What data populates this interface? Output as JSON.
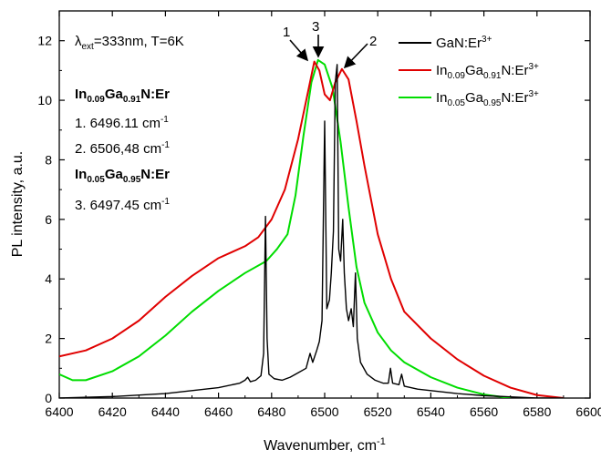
{
  "chart_data": {
    "type": "line",
    "xlabel": "Wavenumber, cm",
    "xlabel_sup": "-1",
    "ylabel": "PL intensity, a.u.",
    "xlim": [
      6400,
      6600
    ],
    "ylim": [
      0,
      13
    ],
    "x_ticks": [
      "6400",
      "6420",
      "6440",
      "6460",
      "6480",
      "6500",
      "6520",
      "6540",
      "6560",
      "6580",
      "6600"
    ],
    "y_ticks": [
      "0",
      "2",
      "4",
      "6",
      "8",
      "10",
      "12"
    ],
    "grid": false,
    "legend_position": "top-right",
    "annotations": {
      "condition_lambda": "λ",
      "condition_sub": "ext",
      "condition_rest": "=333nm, T=6K",
      "sample1": {
        "a": "In",
        "a_sub": "0.09",
        "b": "Ga",
        "b_sub": "0.91",
        "c": "N:Er"
      },
      "peak1": "1. 6496.11 cm",
      "peak1_sup": "-1",
      "peak2": "2. 6506,48 cm",
      "peak2_sup": "-1",
      "sample2": {
        "a": "In",
        "a_sub": "0.05",
        "b": "Ga",
        "b_sub": "0.95",
        "c": "N:Er"
      },
      "peak3": "3. 6497.45 cm",
      "peak3_sup": "-1",
      "arrow_labels": [
        "1",
        "3",
        "2"
      ]
    },
    "series": [
      {
        "name": "GaN:Er3+",
        "legend": {
          "base": "GaN:Er",
          "sup": "3+"
        },
        "color": "#000000",
        "points": [
          [
            6400,
            0.0
          ],
          [
            6420,
            0.05
          ],
          [
            6440,
            0.15
          ],
          [
            6460,
            0.35
          ],
          [
            6468,
            0.5
          ],
          [
            6470,
            0.6
          ],
          [
            6471,
            0.7
          ],
          [
            6472,
            0.55
          ],
          [
            6474,
            0.6
          ],
          [
            6476,
            0.75
          ],
          [
            6477,
            1.5
          ],
          [
            6477.7,
            6.1
          ],
          [
            6478.3,
            2.0
          ],
          [
            6479,
            0.8
          ],
          [
            6481,
            0.65
          ],
          [
            6484,
            0.6
          ],
          [
            6487,
            0.7
          ],
          [
            6490,
            0.85
          ],
          [
            6493,
            1.0
          ],
          [
            6494.5,
            1.5
          ],
          [
            6495.5,
            1.2
          ],
          [
            6497,
            1.6
          ],
          [
            6498,
            1.9
          ],
          [
            6499,
            2.6
          ],
          [
            6500,
            9.3
          ],
          [
            6500.8,
            3.0
          ],
          [
            6501.8,
            3.3
          ],
          [
            6502.5,
            4.2
          ],
          [
            6503.3,
            5.6
          ],
          [
            6504,
            10.6
          ],
          [
            6504.7,
            11.2
          ],
          [
            6505.3,
            5.0
          ],
          [
            6506,
            4.6
          ],
          [
            6506.8,
            6.0
          ],
          [
            6507.4,
            4.2
          ],
          [
            6508.2,
            3.0
          ],
          [
            6509,
            2.6
          ],
          [
            6510,
            3.0
          ],
          [
            6510.8,
            2.4
          ],
          [
            6511.6,
            4.2
          ],
          [
            6512.3,
            2.0
          ],
          [
            6513.5,
            1.2
          ],
          [
            6516,
            0.8
          ],
          [
            6519,
            0.6
          ],
          [
            6522,
            0.5
          ],
          [
            6524,
            0.5
          ],
          [
            6524.8,
            1.0
          ],
          [
            6525.6,
            0.5
          ],
          [
            6528,
            0.45
          ],
          [
            6529,
            0.8
          ],
          [
            6530,
            0.4
          ],
          [
            6535,
            0.3
          ],
          [
            6540,
            0.25
          ],
          [
            6550,
            0.15
          ],
          [
            6560,
            0.08
          ],
          [
            6570,
            0.04
          ],
          [
            6580,
            0.0
          ],
          [
            6590,
            0.0
          ]
        ]
      },
      {
        "name": "In0.09Ga0.91N:Er3+",
        "legend": {
          "a": "In",
          "a_sub": "0.09",
          "b": "Ga",
          "b_sub": "0.91",
          "c": "N:Er",
          "sup": "3+"
        },
        "color": "#e00000",
        "points": [
          [
            6400,
            1.4
          ],
          [
            6410,
            1.6
          ],
          [
            6420,
            2.0
          ],
          [
            6430,
            2.6
          ],
          [
            6440,
            3.4
          ],
          [
            6450,
            4.1
          ],
          [
            6460,
            4.7
          ],
          [
            6465,
            4.9
          ],
          [
            6470,
            5.1
          ],
          [
            6475,
            5.4
          ],
          [
            6480,
            6.0
          ],
          [
            6485,
            7.0
          ],
          [
            6490,
            8.7
          ],
          [
            6494,
            10.4
          ],
          [
            6496.1,
            11.3
          ],
          [
            6498,
            11.0
          ],
          [
            6500,
            10.2
          ],
          [
            6502,
            10.0
          ],
          [
            6504,
            10.6
          ],
          [
            6506.5,
            11.05
          ],
          [
            6509,
            10.7
          ],
          [
            6512,
            9.3
          ],
          [
            6515,
            7.8
          ],
          [
            6520,
            5.5
          ],
          [
            6525,
            4.0
          ],
          [
            6530,
            2.9
          ],
          [
            6540,
            2.0
          ],
          [
            6550,
            1.3
          ],
          [
            6560,
            0.75
          ],
          [
            6570,
            0.35
          ],
          [
            6580,
            0.1
          ],
          [
            6590,
            0.0
          ]
        ]
      },
      {
        "name": "In0.05Ga0.95N:Er3+",
        "legend": {
          "a": "In",
          "a_sub": "0.05",
          "b": "Ga",
          "b_sub": "0.95",
          "c": "N:Er",
          "sup": "3+"
        },
        "color": "#00dd00",
        "points": [
          [
            6400,
            0.8
          ],
          [
            6405,
            0.6
          ],
          [
            6410,
            0.6
          ],
          [
            6420,
            0.9
          ],
          [
            6430,
            1.4
          ],
          [
            6440,
            2.1
          ],
          [
            6450,
            2.9
          ],
          [
            6460,
            3.6
          ],
          [
            6470,
            4.2
          ],
          [
            6478,
            4.6
          ],
          [
            6482,
            5.0
          ],
          [
            6486,
            5.5
          ],
          [
            6489,
            6.8
          ],
          [
            6492,
            8.8
          ],
          [
            6495,
            10.6
          ],
          [
            6497.5,
            11.35
          ],
          [
            6500,
            11.2
          ],
          [
            6503,
            10.4
          ],
          [
            6506,
            8.6
          ],
          [
            6509,
            6.4
          ],
          [
            6512,
            4.4
          ],
          [
            6515,
            3.2
          ],
          [
            6520,
            2.2
          ],
          [
            6525,
            1.6
          ],
          [
            6530,
            1.2
          ],
          [
            6540,
            0.7
          ],
          [
            6550,
            0.35
          ],
          [
            6560,
            0.12
          ],
          [
            6570,
            0.0
          ]
        ]
      }
    ]
  }
}
